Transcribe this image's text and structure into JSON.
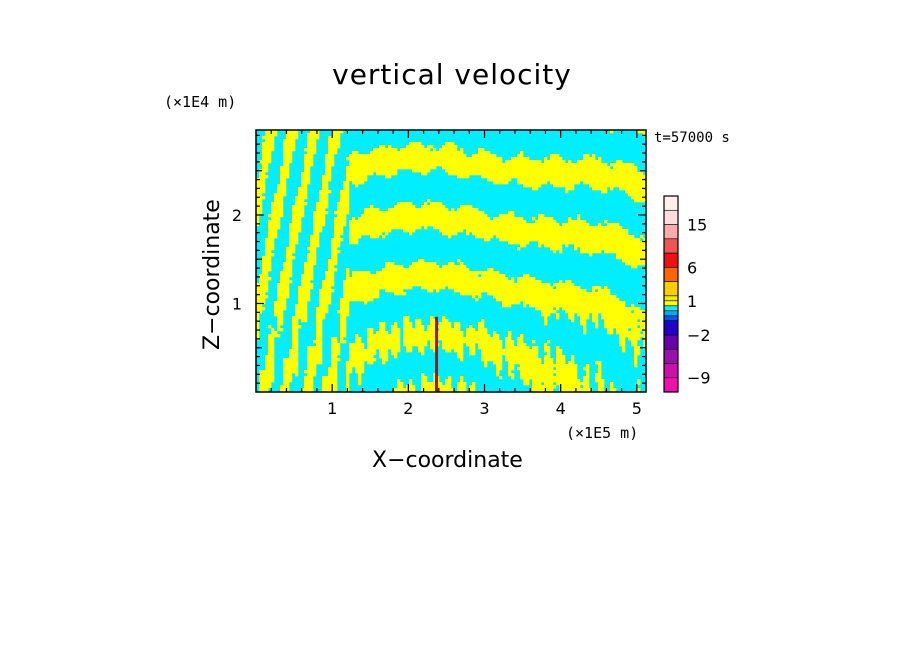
{
  "chart_data": {
    "type": "heatmap",
    "title": "vertical velocity",
    "xlabel": "X−coordinate",
    "ylabel": "Z−coordinate",
    "x_unit": "(×1E5 m)",
    "y_unit": "(×1E4 m)",
    "annotation": "t=57000 s",
    "xlim": [
      0,
      5.12
    ],
    "ylim": [
      0,
      2.96
    ],
    "x_ticks": [
      1,
      2,
      3,
      4,
      5
    ],
    "y_ticks": [
      1,
      2
    ],
    "colorbar": {
      "levels": [
        -12,
        -9,
        -6,
        -4,
        -2,
        -1,
        -0.5,
        0,
        0.5,
        1,
        2,
        4,
        6,
        9,
        12,
        15,
        20,
        25
      ],
      "colors": [
        "#ee11aa",
        "#cc11aa",
        "#9911aa",
        "#6600aa",
        "#2200cc",
        "#0055ee",
        "#00aaff",
        "#00eeff",
        "#ffff00",
        "#eeee00",
        "#ffcc00",
        "#ff6600",
        "#ee1111",
        "#ee5555",
        "#ffaaaa",
        "#ffdddd",
        "#ffeeee"
      ],
      "tick_labels": [
        "15",
        "6",
        "1",
        "−2",
        "−9"
      ],
      "tick_values": [
        15,
        6,
        1,
        -2,
        -9
      ]
    },
    "field_colors": {
      "positive": "#ffff00",
      "negative": "#00eeff",
      "plume": "#cc0000"
    }
  }
}
